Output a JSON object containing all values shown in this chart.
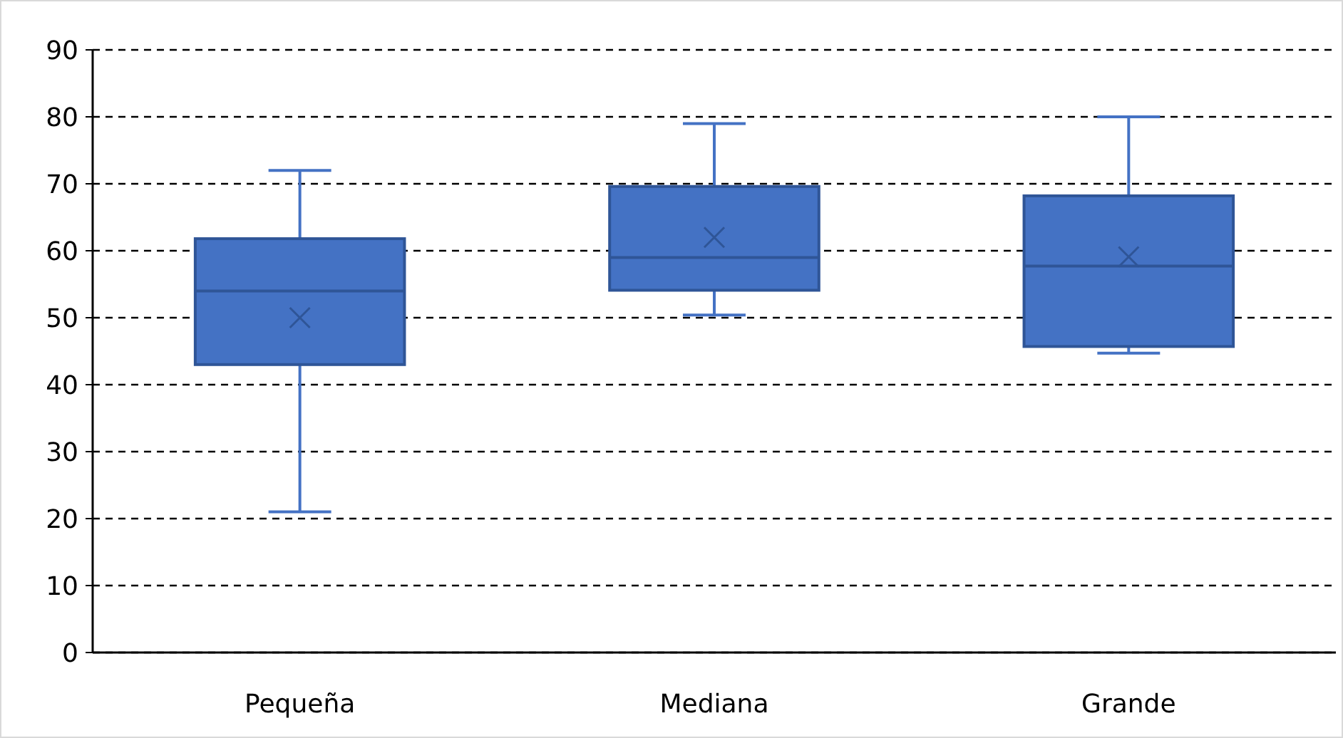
{
  "chart_data": {
    "type": "box",
    "categories": [
      "Pequeña",
      "Mediana",
      "Grande"
    ],
    "color": "#4472c4",
    "boxes": [
      {
        "low": 21,
        "q1": 43,
        "median": 54,
        "q3": 61.8,
        "high": 72,
        "mean": 50
      },
      {
        "low": 50.4,
        "q1": 54.1,
        "median": 59,
        "q3": 69.6,
        "high": 79,
        "mean": 62
      },
      {
        "low": 44.7,
        "q1": 45.7,
        "median": 57.7,
        "q3": 68.2,
        "high": 80,
        "mean": 59.1
      }
    ],
    "ylim": [
      0,
      90
    ],
    "yticks": [
      0,
      10,
      20,
      30,
      40,
      50,
      60,
      70,
      80,
      90
    ],
    "grid": "y",
    "line_style": "dashed"
  }
}
